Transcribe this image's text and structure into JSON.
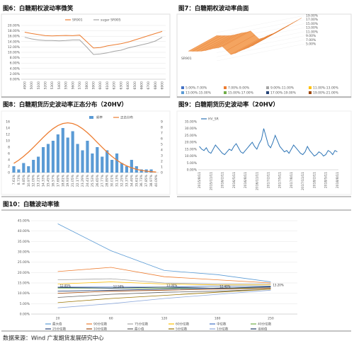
{
  "chart_data": [
    {
      "type": "line",
      "title": "图6：白糖期权波动率微笑",
      "categories": [
        "4900",
        "5000",
        "5100",
        "5200",
        "5300",
        "5400",
        "5500",
        "5600",
        "5700",
        "5800",
        "5900",
        "6000",
        "6100",
        "6200",
        "6300",
        "6400",
        "6500",
        "6600",
        "6700",
        "6800",
        "6900"
      ],
      "series": [
        {
          "name": "SR901",
          "color": "#ed7d31",
          "values": [
            17.5,
            17.0,
            16.6,
            16.2,
            16.1,
            16.2,
            16.3,
            16.2,
            16.4,
            14.0,
            11.6,
            11.8,
            12.4,
            12.8,
            13.2,
            13.8,
            14.6,
            15.4,
            16.2,
            17.0,
            17.8
          ]
        },
        {
          "name": "sugar SR905",
          "color": "#a5a5a5",
          "values": [
            15.6,
            15.0,
            14.6,
            14.4,
            14.4,
            14.3,
            14.4,
            14.6,
            14.6,
            12.0,
            9.2,
            9.4,
            9.8,
            10.4,
            10.8,
            11.6,
            12.2,
            12.8,
            13.4,
            14.2,
            15.6
          ]
        }
      ],
      "ylim": [
        0,
        20
      ],
      "yticks": [
        {
          "value": 0,
          "label": "0.00%"
        },
        {
          "value": 2,
          "label": "2.00%"
        },
        {
          "value": 4,
          "label": "4.00%"
        },
        {
          "value": 6,
          "label": "6.00%"
        },
        {
          "value": 8,
          "label": "8.00%"
        },
        {
          "value": 10,
          "label": "10.00%"
        },
        {
          "value": 12,
          "label": "12.00%"
        },
        {
          "value": 14,
          "label": "14.00%"
        },
        {
          "value": 16,
          "label": "16.00%"
        },
        {
          "value": 18,
          "label": "18.00%"
        },
        {
          "value": 20,
          "label": "20.00%"
        }
      ],
      "grid": true,
      "legend": "top"
    },
    {
      "type": "surface",
      "title": "图7：白糖期权波动率曲面",
      "series": [
        {
          "name": "SR901",
          "color": "#f4a460",
          "values": [
            17.5,
            17.0,
            16.6,
            16.2,
            16.1,
            16.2,
            16.3,
            16.2,
            16.4,
            14.0,
            11.6,
            11.8,
            12.4,
            12.8,
            13.2,
            13.8,
            14.6,
            15.4,
            16.2,
            17.0,
            17.8
          ]
        }
      ],
      "ylim": [
        5,
        19
      ],
      "yticks": [
        {
          "value": 5,
          "label": "5.00%"
        },
        {
          "value": 7,
          "label": "7.00%"
        },
        {
          "value": 9,
          "label": "9.00%"
        },
        {
          "value": 11,
          "label": "11.00%"
        },
        {
          "value": 13,
          "label": "13.00%"
        },
        {
          "value": 15,
          "label": "15.00%"
        },
        {
          "value": 17,
          "label": "17.00%"
        },
        {
          "value": 19,
          "label": "19.00%"
        }
      ],
      "bands": [
        {
          "name": "5.00%-7.00%",
          "color": "#4472c4"
        },
        {
          "name": "7.00%-9.00%",
          "color": "#ed7d31"
        },
        {
          "name": "9.00%-11.00%",
          "color": "#a5a5a5"
        },
        {
          "name": "11.00%-13.00%",
          "color": "#ffc000"
        },
        {
          "name": "13.00%-15.00%",
          "color": "#5b9bd5"
        },
        {
          "name": "15.00%-17.00%",
          "color": "#70ad47"
        },
        {
          "name": "17.00%-19.00%",
          "color": "#264478"
        },
        {
          "name": "19.00%-21.00%",
          "color": "#9e480e"
        }
      ]
    },
    {
      "type": "bar",
      "title": "图8：白糖期货历史波动率正态分布（20HV）",
      "categories": [
        "7.61%",
        "8.73%",
        "9.85%",
        "10.97%",
        "12.09%",
        "13.21%",
        "14.33%",
        "15.45%",
        "16.57%",
        "17.69%",
        "18.81%",
        "19.93%",
        "21.05%",
        "22.17%",
        "23.29%",
        "24.41%",
        "25.53%",
        "26.65%",
        "27.77%",
        "28.89%",
        "30.01%",
        "31.13%",
        "32.25%",
        "33.37%",
        "34.49%",
        "35.61%",
        "36.73%",
        "37.85%",
        "38.97%",
        "40.09%"
      ],
      "series": [
        {
          "name": "频率",
          "color": "#5b9bd5",
          "values": [
            2,
            1,
            3,
            2,
            4,
            5,
            8,
            9,
            10,
            12,
            14,
            11,
            13,
            9,
            7,
            10,
            6,
            8,
            5,
            7,
            4,
            6,
            3,
            2,
            4,
            2,
            1,
            1,
            1,
            0
          ]
        },
        {
          "name": "正态分布",
          "color": "#ed7d31",
          "axis": "y2",
          "values": [
            1.64,
            2.19,
            2.86,
            3.62,
            4.46,
            5.34,
            6.22,
            7.05,
            7.76,
            8.32,
            8.68,
            8.8,
            8.68,
            8.32,
            7.76,
            7.05,
            6.22,
            5.34,
            4.46,
            3.62,
            2.86,
            2.19,
            1.64,
            1.19,
            0.84,
            0.58,
            0.39,
            0.25,
            0.16,
            0.1
          ]
        }
      ],
      "ylim": [
        0,
        16
      ],
      "yticks": [
        0,
        2,
        4,
        6,
        8,
        10,
        12,
        14,
        16
      ],
      "y2lim": [
        0,
        9
      ],
      "y2ticks": [
        0,
        1,
        2,
        3,
        4,
        5,
        6,
        7,
        8,
        9
      ],
      "grid": false,
      "legend": "top"
    },
    {
      "type": "line",
      "title": "图9：白糖期货历史波动率（20HV）",
      "categories": [
        "2015/8/11",
        null,
        null,
        null,
        null,
        "2015/11/11",
        null,
        null,
        null,
        null,
        "2016/2/11",
        null,
        null,
        null,
        null,
        "2016/5/11",
        null,
        null,
        null,
        null,
        "2016/8/11",
        null,
        null,
        null,
        null,
        "2016/11/11",
        null,
        null,
        null,
        null,
        "2017/2/11",
        null,
        null,
        null,
        null,
        "2017/5/11",
        null,
        null,
        null,
        null,
        "2017/8/11",
        null,
        null,
        null,
        null,
        "2017/11/11",
        null,
        null,
        null,
        null,
        "2018/2/11",
        null,
        null,
        null,
        null,
        "2018/5/11",
        null,
        null,
        null,
        null,
        "2018/8/11"
      ],
      "series": [
        {
          "name": "HV_SR",
          "color": "#2e75b6",
          "values": [
            17,
            15,
            14,
            16,
            13,
            12,
            15,
            18,
            16,
            14,
            12,
            11,
            13,
            15,
            14,
            17,
            19,
            16,
            13,
            12,
            14,
            16,
            18,
            20,
            17,
            15,
            19,
            22,
            30,
            24,
            18,
            16,
            20,
            25,
            21,
            17,
            15,
            13,
            14,
            12,
            15,
            18,
            16,
            14,
            12,
            11,
            13,
            17,
            14,
            12,
            10,
            11,
            13,
            12,
            10,
            11,
            14,
            13,
            11,
            14,
            13
          ]
        }
      ],
      "ylim": [
        0,
        35
      ],
      "yticks": [
        {
          "value": 0,
          "label": "0.00%"
        },
        {
          "value": 5,
          "label": "5.00%"
        },
        {
          "value": 10,
          "label": "10.00%"
        },
        {
          "value": 15,
          "label": "15.00%"
        },
        {
          "value": 20,
          "label": "20.00%"
        },
        {
          "value": 25,
          "label": "25.00%"
        },
        {
          "value": 30,
          "label": "30.00%"
        },
        {
          "value": 35,
          "label": "35.00%"
        }
      ],
      "grid": false,
      "legend": "top-left"
    },
    {
      "type": "line",
      "title": "图10：白糖波动率锥",
      "categories": [
        "20",
        "60",
        "120",
        "180",
        "250"
      ],
      "series": [
        {
          "name": "最大值",
          "color": "#5b9bd5",
          "values": [
            43.5,
            30.5,
            21,
            19,
            15.5
          ]
        },
        {
          "name": "90分位数",
          "color": "#ed7d31",
          "values": [
            20.5,
            22.5,
            18,
            16.5,
            15
          ]
        },
        {
          "name": "75分位数",
          "color": "#a5a5a5",
          "values": [
            16.5,
            17,
            15,
            14.5,
            14.5
          ]
        },
        {
          "name": "60分位数",
          "color": "#ffc000",
          "values": [
            14.5,
            15.5,
            14.5,
            14,
            14
          ]
        },
        {
          "name": "中位数",
          "color": "#4472c4",
          "values": [
            13,
            13,
            13,
            13.5,
            13.5
          ]
        },
        {
          "name": "40分位数",
          "color": "#70ad47",
          "values": [
            12.5,
            12.5,
            12.5,
            12.5,
            12.5
          ]
        },
        {
          "name": "25分位数",
          "color": "#264478",
          "values": [
            11,
            11.5,
            12,
            12.5,
            13
          ]
        },
        {
          "name": "10分位数",
          "color": "#9e480e",
          "values": [
            10,
            11,
            11.5,
            12,
            12.5
          ]
        },
        {
          "name": "最小值",
          "color": "#636363",
          "values": [
            8,
            9.5,
            10.5,
            11,
            12
          ]
        },
        {
          "name": "5分位数",
          "color": "#997300",
          "values": [
            5.5,
            7.5,
            9,
            10.5,
            12
          ]
        },
        {
          "name": "1分位数",
          "color": "#8faadc",
          "values": [
            3,
            5,
            7.5,
            9.5,
            11.5
          ]
        },
        {
          "name": "当前值",
          "color": "#1f3864",
          "values": [
            12.85,
            12.5,
            13,
            12.4,
            13.2
          ],
          "value_labels": [
            "12.85%",
            "12.50%",
            "13.00%",
            "12.40%",
            "13.20%"
          ]
        }
      ],
      "ylim": [
        0,
        45
      ],
      "yticks": [
        {
          "value": 0,
          "label": "0.00%"
        },
        {
          "value": 5,
          "label": "5.00%"
        },
        {
          "value": 10,
          "label": "10.00%"
        },
        {
          "value": 15,
          "label": "15.00%"
        },
        {
          "value": 20,
          "label": "20.00%"
        },
        {
          "value": 25,
          "label": "25.00%"
        },
        {
          "value": 30,
          "label": "30.00%"
        },
        {
          "value": 35,
          "label": "35.00%"
        },
        {
          "value": 40,
          "label": "40.00%"
        },
        {
          "value": 45,
          "label": "45.00%"
        }
      ],
      "grid": true,
      "legend": "bottom"
    }
  ],
  "source": "数据来源：Wind 广发期货发展研究中心"
}
